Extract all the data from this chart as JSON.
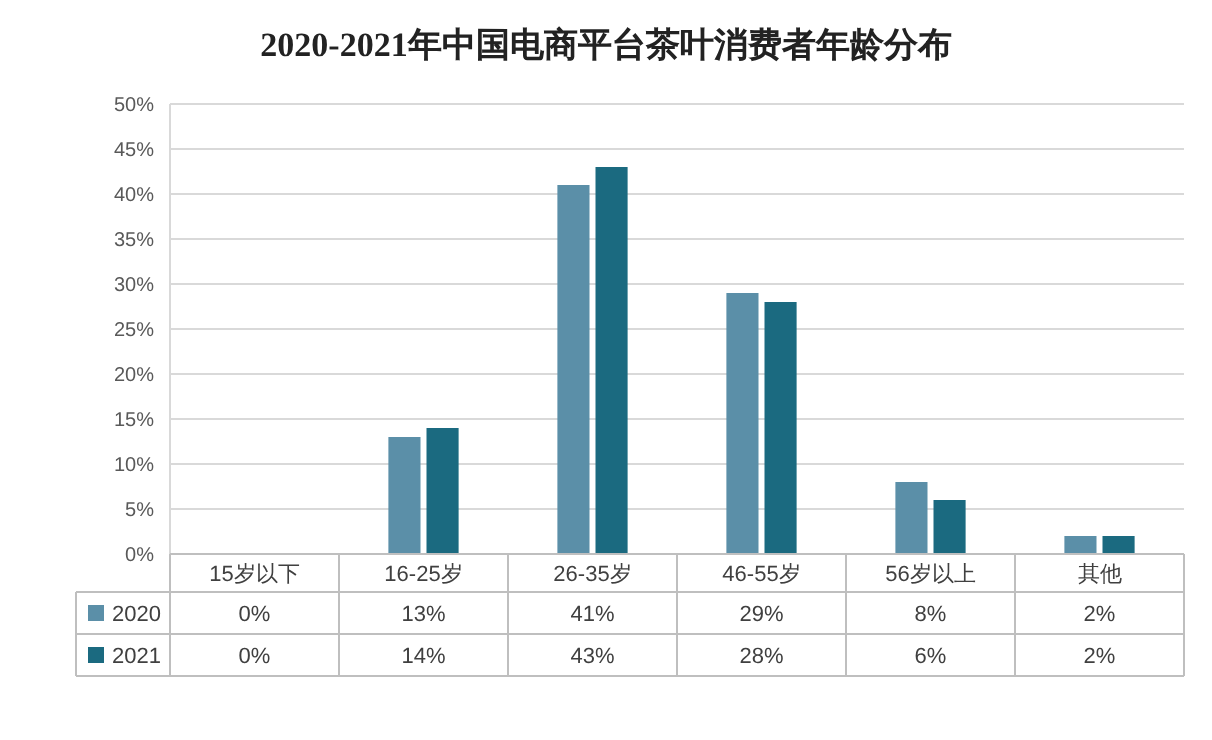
{
  "chart_data": {
    "type": "bar",
    "title": "2020-2021年中国电商平台茶叶消费者年龄分布",
    "categories": [
      "15岁以下",
      "16-25岁",
      "26-35岁",
      "46-55岁",
      "56岁以上",
      "其他"
    ],
    "series": [
      {
        "name": "2020",
        "color": "#5b8fa8",
        "values": [
          0,
          13,
          41,
          29,
          8,
          2
        ],
        "value_labels": [
          "0%",
          "13%",
          "41%",
          "29%",
          "8%",
          "2%"
        ]
      },
      {
        "name": "2021",
        "color": "#1b6a80",
        "values": [
          0,
          14,
          43,
          28,
          6,
          2
        ],
        "value_labels": [
          "0%",
          "14%",
          "43%",
          "28%",
          "6%",
          "2%"
        ]
      }
    ],
    "ylim": [
      0,
      50
    ],
    "yticks": [
      {
        "value": 0,
        "label": "0%"
      },
      {
        "value": 5,
        "label": "5%"
      },
      {
        "value": 10,
        "label": "10%"
      },
      {
        "value": 15,
        "label": "15%"
      },
      {
        "value": 20,
        "label": "20%"
      },
      {
        "value": 25,
        "label": "25%"
      },
      {
        "value": 30,
        "label": "30%"
      },
      {
        "value": 35,
        "label": "35%"
      },
      {
        "value": 40,
        "label": "40%"
      },
      {
        "value": 45,
        "label": "45%"
      },
      {
        "value": 50,
        "label": "50%"
      }
    ],
    "grid": "y",
    "legend": "bottom"
  }
}
